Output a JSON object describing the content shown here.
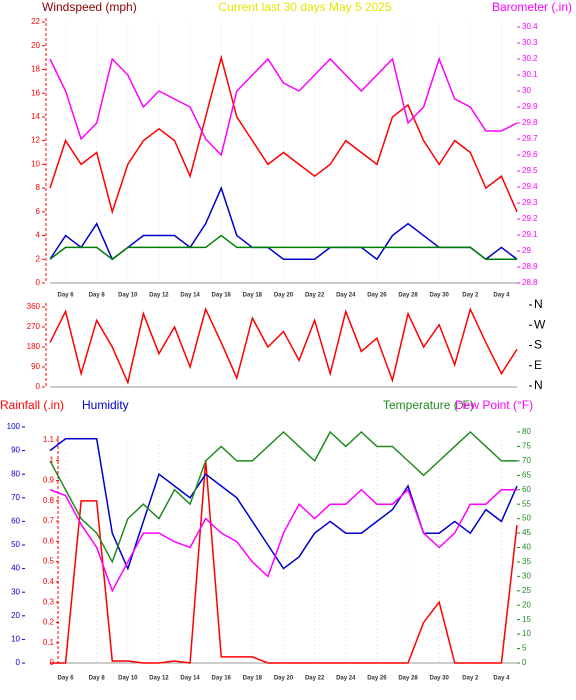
{
  "chart_data": [
    {
      "type": "line",
      "title": "Current last 30 days May 5 2025",
      "categories": [
        null,
        "Day 6",
        null,
        "Day 8",
        null,
        "Day 10",
        null,
        "Day 12",
        null,
        "Day 14",
        null,
        "Day 16",
        null,
        "Day 18",
        null,
        "Day 20",
        null,
        "Day 22",
        null,
        "Day 24",
        null,
        "Day 26",
        null,
        "Day 28",
        null,
        "Day 30",
        null,
        "Day 2",
        null,
        "Day 4",
        null
      ],
      "ylim": [
        0,
        22
      ],
      "yticks": [
        0,
        2,
        4,
        6,
        8,
        10,
        12,
        14,
        16,
        18,
        20,
        22
      ],
      "y2lim": [
        28.8,
        30.4
      ],
      "y2ticks": [
        28.8,
        28.9,
        29,
        29.1,
        29.2,
        29.3,
        29.4,
        29.5,
        29.6,
        29.7,
        29.8,
        29.9,
        30,
        30.1,
        30.2,
        30.3,
        30.4
      ],
      "series": [
        {
          "name": "Windspeed (mph)",
          "color": "#ff0000",
          "values": [
            8,
            12,
            10,
            11,
            6,
            10,
            12,
            13,
            12,
            9,
            14,
            19,
            14,
            12,
            10,
            11,
            10,
            9,
            10,
            12,
            11,
            10,
            14,
            15,
            12,
            10,
            12,
            11,
            8,
            9,
            6
          ]
        },
        {
          "color": "#0000cc",
          "values": [
            2,
            4,
            3,
            5,
            2,
            3,
            4,
            4,
            4,
            3,
            5,
            8,
            4,
            3,
            3,
            2,
            2,
            2,
            3,
            3,
            3,
            2,
            4,
            5,
            4,
            3,
            3,
            3,
            2,
            3,
            2
          ]
        },
        {
          "color": "#008000",
          "values": [
            2,
            3,
            3,
            3,
            2,
            3,
            3,
            3,
            3,
            3,
            3,
            4,
            3,
            3,
            3,
            3,
            3,
            3,
            3,
            3,
            3,
            3,
            3,
            3,
            3,
            3,
            3,
            3,
            2,
            2,
            2
          ]
        },
        {
          "name": "Barometer (.in)",
          "color": "#ff00ff",
          "axis": "y2",
          "values": [
            30.2,
            30,
            29.7,
            29.8,
            30.2,
            30.1,
            29.9,
            30,
            29.95,
            29.9,
            29.7,
            29.6,
            30,
            30.1,
            30.2,
            30.05,
            30,
            30.1,
            30.2,
            30.1,
            30,
            30.1,
            30.2,
            29.8,
            29.9,
            30.2,
            29.95,
            29.9,
            29.75,
            29.75,
            29.8
          ]
        }
      ]
    },
    {
      "type": "line",
      "ylim": [
        0,
        360
      ],
      "yticks": [
        0,
        90,
        180,
        270,
        360
      ],
      "y2lim": [
        0,
        360
      ],
      "y2ticks": [
        {
          "value": 360,
          "label": "N"
        },
        {
          "value": 270,
          "label": "W"
        },
        {
          "value": 180,
          "label": "S"
        },
        {
          "value": 90,
          "label": "E"
        },
        {
          "value": 0,
          "label": "N"
        }
      ],
      "series": [
        {
          "color": "#ff0000",
          "values": [
            200,
            340,
            60,
            300,
            180,
            20,
            330,
            150,
            270,
            90,
            350,
            200,
            40,
            310,
            180,
            250,
            120,
            300,
            60,
            340,
            160,
            220,
            30,
            330,
            180,
            280,
            100,
            350,
            200,
            60,
            170
          ]
        }
      ]
    },
    {
      "type": "line",
      "categories": [
        null,
        "Day 6",
        null,
        "Day 8",
        null,
        "Day 10",
        null,
        "Day 12",
        null,
        "Day 14",
        null,
        "Day 16",
        null,
        "Day 18",
        null,
        "Day 20",
        null,
        "Day 22",
        null,
        "Day 24",
        null,
        "Day 26",
        null,
        "Day 28",
        null,
        "Day 30",
        null,
        "Day 2",
        null,
        "Day 4",
        null
      ],
      "ylim": [
        0,
        1.1
      ],
      "yticks": [
        0,
        0.1,
        0.2,
        0.3,
        0.4,
        0.5,
        0.6,
        0.7,
        0.8,
        0.9,
        1,
        1.1
      ],
      "y2lim": [
        0,
        100
      ],
      "y2ticks": [
        0,
        10,
        20,
        30,
        40,
        50,
        60,
        70,
        80,
        90,
        100
      ],
      "y3lim": [
        0,
        80
      ],
      "y3ticks": [
        0,
        5,
        10,
        15,
        20,
        25,
        30,
        35,
        40,
        45,
        50,
        55,
        60,
        65,
        70,
        75,
        80
      ],
      "series": [
        {
          "name": "Rainfall (.in)",
          "color": "#ff0000",
          "values": [
            0,
            0,
            0.8,
            0.8,
            0.01,
            0.01,
            0,
            0,
            0.01,
            0,
            1,
            0.03,
            0.03,
            0.03,
            0,
            0,
            0,
            0,
            0,
            0,
            0,
            0,
            0,
            0,
            0.2,
            0.3,
            0,
            0,
            0,
            0,
            0.68
          ]
        },
        {
          "name": "Humidity",
          "color": "#0000cc",
          "axis": "y2",
          "values": [
            90,
            95,
            95,
            95,
            55,
            40,
            60,
            80,
            75,
            70,
            80,
            75,
            70,
            60,
            50,
            40,
            45,
            55,
            60,
            55,
            55,
            60,
            65,
            75,
            55,
            55,
            60,
            55,
            65,
            60,
            75
          ]
        },
        {
          "name": "Temperature (°F)",
          "color": "#228b22",
          "axis": "y3",
          "values": [
            70,
            60,
            50,
            45,
            35,
            50,
            55,
            50,
            60,
            55,
            70,
            75,
            70,
            70,
            75,
            80,
            75,
            70,
            80,
            75,
            80,
            75,
            75,
            70,
            65,
            70,
            75,
            80,
            75,
            70,
            70
          ]
        },
        {
          "name": "Dew Point (°F)",
          "color": "#ff00ff",
          "axis": "y3",
          "values": [
            60,
            58,
            48,
            40,
            25,
            35,
            45,
            45,
            42,
            40,
            50,
            45,
            42,
            35,
            30,
            45,
            55,
            50,
            55,
            55,
            60,
            55,
            55,
            60,
            45,
            40,
            45,
            55,
            55,
            60,
            60
          ]
        }
      ]
    }
  ]
}
